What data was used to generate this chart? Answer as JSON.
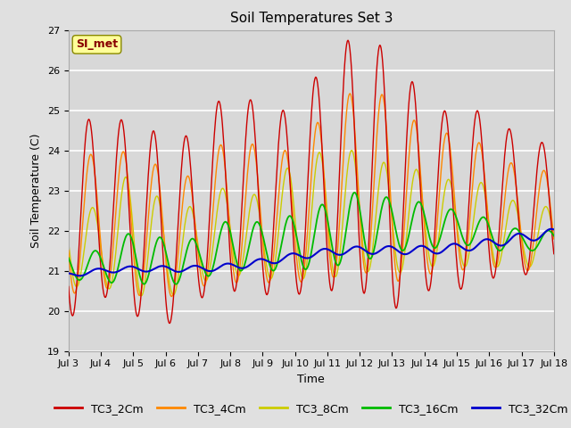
{
  "title": "Soil Temperatures Set 3",
  "xlabel": "Time",
  "ylabel": "Soil Temperature (C)",
  "ylim": [
    19.0,
    27.0
  ],
  "yticks": [
    19.0,
    20.0,
    21.0,
    22.0,
    23.0,
    24.0,
    25.0,
    26.0,
    27.0
  ],
  "xtick_labels": [
    "Jul 3",
    "Jul 4",
    "Jul 5",
    "Jul 6",
    "Jul 7",
    "Jul 8",
    "Jul 9",
    "Jul 10",
    "Jul 11",
    "Jul 12",
    "Jul 13",
    "Jul 14",
    "Jul 15",
    "Jul 16",
    "Jul 17",
    "Jul 18"
  ],
  "colors": {
    "TC3_2Cm": "#cc0000",
    "TC3_4Cm": "#ff8800",
    "TC3_8Cm": "#cccc00",
    "TC3_16Cm": "#00bb00",
    "TC3_32Cm": "#0000cc"
  },
  "background_color": "#e0e0e0",
  "plot_bg_color": "#d8d8d8",
  "annotation_text": "SI_met",
  "annotation_bg": "#ffff99",
  "annotation_border": "#888800",
  "annotation_text_color": "#880000",
  "title_fontsize": 11,
  "axis_fontsize": 9,
  "tick_fontsize": 8,
  "legend_fontsize": 9
}
